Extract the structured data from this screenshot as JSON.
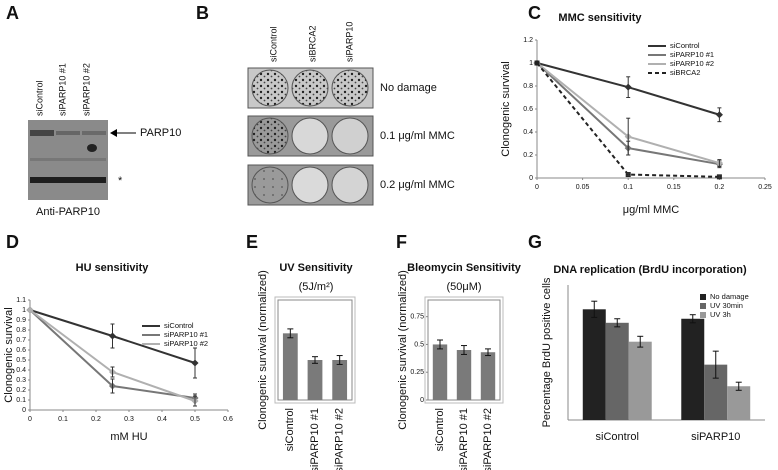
{
  "panels": {
    "A": {
      "label": "A",
      "lanes": [
        "siControl",
        "siPARP10 #1",
        "siPARP10 #2"
      ],
      "band_label": "PARP10",
      "asterisk": "*",
      "antibody": "Anti-PARP10"
    },
    "B": {
      "label": "B",
      "lanes": [
        "siControl",
        "siBRCA2",
        "siPARP10"
      ],
      "rows": [
        "No damage",
        "0.1 μg/ml MMC",
        "0.2 μg/ml MMC"
      ]
    }
  },
  "chart_data": [
    {
      "label": "C",
      "type": "line",
      "title": "MMC sensitivity",
      "x_label": "μg/ml MMC",
      "y_label": "Clonogenic survival",
      "x": [
        0,
        0.1,
        0.2
      ],
      "xlim": [
        0,
        0.25
      ],
      "xticks": [
        0,
        0.05,
        0.1,
        0.15,
        0.2,
        0.25
      ],
      "ylim": [
        0,
        1.2
      ],
      "yticks": [
        0,
        0.2,
        0.4,
        0.6,
        0.8,
        1,
        1.2
      ],
      "legend": "upper right",
      "series": [
        {
          "name": "siControl",
          "color": "#333333",
          "values": [
            1,
            0.79,
            0.55
          ],
          "errors": [
            null,
            0.09,
            0.06
          ]
        },
        {
          "name": "siPARP10 #1",
          "color": "#777777",
          "values": [
            1,
            0.26,
            0.12
          ],
          "errors": [
            null,
            0.06,
            0.03
          ]
        },
        {
          "name": "siPARP10 #2",
          "color": "#b0b0b0",
          "values": [
            1,
            0.36,
            0.13
          ],
          "errors": [
            null,
            0.16,
            0.03
          ]
        },
        {
          "name": "siBRCA2",
          "color": "#222222",
          "values": [
            1,
            0.03,
            0.01
          ],
          "errors": [
            null,
            0.01,
            0.01
          ],
          "dashed": true
        }
      ]
    },
    {
      "label": "D",
      "type": "line",
      "title": "HU sensitivity",
      "x_label": "mM HU",
      "y_label": "Clonogenic survival",
      "x": [
        0,
        0.25,
        0.5
      ],
      "xlim": [
        0,
        0.6
      ],
      "xticks": [
        0,
        0.1,
        0.2,
        0.3,
        0.4,
        0.5,
        0.6
      ],
      "ylim": [
        0,
        1.1
      ],
      "yticks": [
        0,
        0.1,
        0.2,
        0.3,
        0.4,
        0.5,
        0.6,
        0.7,
        0.8,
        0.9,
        1,
        1.1
      ],
      "legend": "upper right",
      "series": [
        {
          "name": "siControl",
          "color": "#333333",
          "values": [
            1,
            0.74,
            0.47
          ],
          "errors": [
            null,
            0.12,
            0.15
          ]
        },
        {
          "name": "siPARP10 #1",
          "color": "#777777",
          "values": [
            1,
            0.24,
            0.12
          ],
          "errors": [
            null,
            0.07,
            0.04
          ]
        },
        {
          "name": "siPARP10 #2",
          "color": "#b0b0b0",
          "values": [
            1,
            0.38,
            0.09
          ],
          "errors": [
            null,
            0.05,
            0.05
          ]
        }
      ]
    },
    {
      "label": "E",
      "type": "bar",
      "title": "UV Sensitivity",
      "subtitle": "(5J/m²)",
      "y_label": "Clonogenic survival (normalized)",
      "categories": [
        "siControl",
        "siPARP10 #1",
        "siPARP10 #2"
      ],
      "values": [
        0.6,
        0.36,
        0.36
      ],
      "errors": [
        0.04,
        0.03,
        0.04
      ],
      "color": "#7a7a7a",
      "ylim": [
        0,
        0.9
      ]
    },
    {
      "label": "F",
      "type": "bar",
      "title": "Bleomycin Sensitivity",
      "subtitle": "(50μM)",
      "y_label": "Clonogenic survival (normalized)",
      "categories": [
        "siControl",
        "siPARP10 #1",
        "siPARP10 #2"
      ],
      "values": [
        0.5,
        0.45,
        0.43
      ],
      "errors": [
        0.04,
        0.04,
        0.03
      ],
      "color": "#7a7a7a",
      "ylim": [
        0,
        0.9
      ],
      "yticks": [
        0,
        0.25,
        0.5,
        0.75
      ]
    },
    {
      "label": "G",
      "type": "bar",
      "title": "DNA replication (BrdU incorporation)",
      "y_label": "Percentage BrdU positive cells",
      "categories": [
        "siControl",
        "siPARP10"
      ],
      "ylim": [
        0,
        50
      ],
      "legend": "upper right",
      "series": [
        {
          "name": "No damage",
          "color": "#222222",
          "values": [
            41,
            37.5
          ],
          "errors": [
            3,
            1.5
          ]
        },
        {
          "name": "UV 30min",
          "color": "#666666",
          "values": [
            36,
            20.5
          ],
          "errors": [
            1.5,
            5
          ]
        },
        {
          "name": "UV 3h",
          "color": "#999999",
          "values": [
            29,
            12.5
          ],
          "errors": [
            2,
            1.5
          ]
        }
      ]
    }
  ]
}
